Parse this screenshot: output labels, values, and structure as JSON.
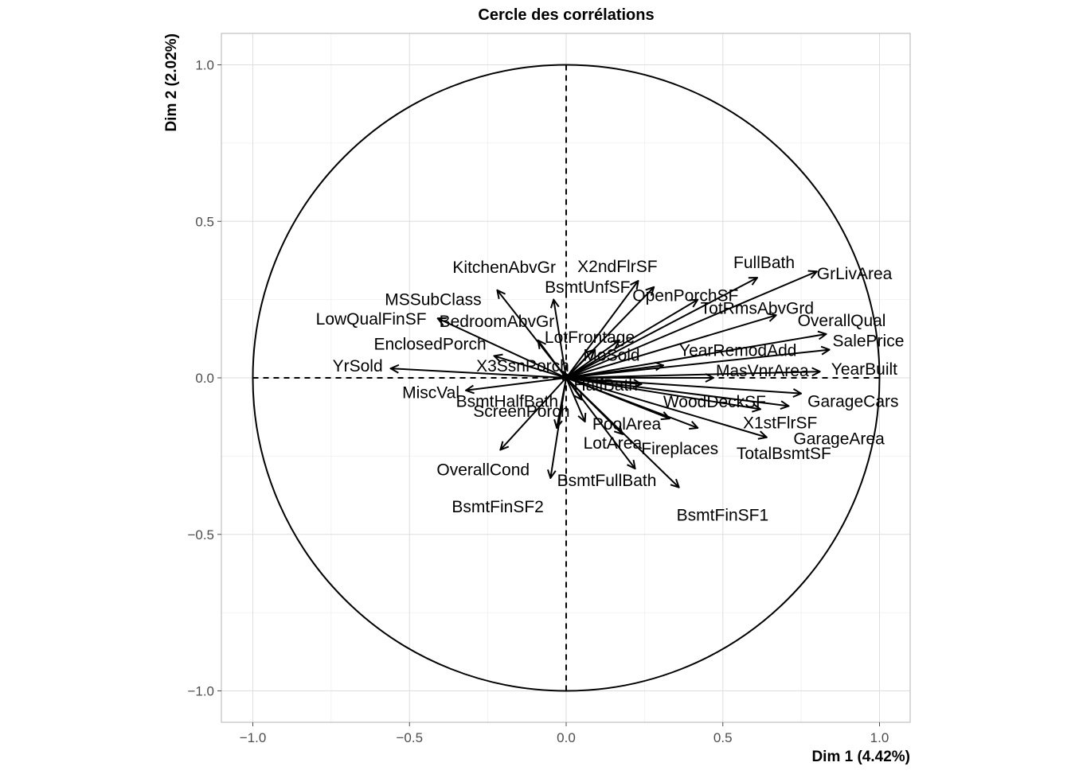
{
  "chart_data": {
    "type": "scatter",
    "subtype": "correlation-circle",
    "title": "Cercle des corrélations",
    "xlabel": "Dim 1 (4.42%)",
    "ylabel": "Dim 2 (2.02%)",
    "xlim": [
      -1.1,
      1.1
    ],
    "ylim": [
      -1.1,
      1.1
    ],
    "xticks": [
      -1.0,
      -0.5,
      0.0,
      0.5,
      1.0
    ],
    "yticks": [
      -1.0,
      -0.5,
      0.0,
      0.5,
      1.0
    ],
    "xtick_labels": [
      "−1.0",
      "−0.5",
      "0.0",
      "0.5",
      "1.0"
    ],
    "ytick_labels": [
      "−1.0",
      "−0.5",
      "0.0",
      "0.5",
      "1.0"
    ],
    "grid": true,
    "unit_circle": true,
    "variables": [
      {
        "name": "GrLivArea",
        "x": 0.8,
        "y": 0.34
      },
      {
        "name": "FullBath",
        "x": 0.61,
        "y": 0.32
      },
      {
        "name": "TotRmsAbvGrd",
        "x": 0.67,
        "y": 0.2
      },
      {
        "name": "OverallQual",
        "x": 0.83,
        "y": 0.14
      },
      {
        "name": "SalePrice",
        "x": 0.84,
        "y": 0.09
      },
      {
        "name": "YearBuilt",
        "x": 0.81,
        "y": 0.02
      },
      {
        "name": "MasVnrArea",
        "x": 0.47,
        "y": 0.0
      },
      {
        "name": "GarageCars",
        "x": 0.75,
        "y": -0.05
      },
      {
        "name": "GarageArea",
        "x": 0.71,
        "y": -0.09
      },
      {
        "name": "X1stFlrSF",
        "x": 0.62,
        "y": -0.1
      },
      {
        "name": "TotalBsmtSF",
        "x": 0.64,
        "y": -0.19
      },
      {
        "name": "WoodDeckSF",
        "x": 0.33,
        "y": -0.13
      },
      {
        "name": "Fireplaces",
        "x": 0.42,
        "y": -0.16
      },
      {
        "name": "BsmtFinSF1",
        "x": 0.36,
        "y": -0.35
      },
      {
        "name": "BsmtFullBath",
        "x": 0.22,
        "y": -0.29
      },
      {
        "name": "PoolArea",
        "x": 0.18,
        "y": -0.18
      },
      {
        "name": "LotArea",
        "x": 0.06,
        "y": -0.14
      },
      {
        "name": "HalfBath",
        "x": 0.24,
        "y": -0.02
      },
      {
        "name": "YearRemodAdd",
        "x": 0.31,
        "y": 0.04
      },
      {
        "name": "OpenPorchSF",
        "x": 0.42,
        "y": 0.25
      },
      {
        "name": "X2ndFlrSF",
        "x": 0.28,
        "y": 0.29
      },
      {
        "name": "BsmtUnfSF",
        "x": 0.23,
        "y": 0.31
      },
      {
        "name": "LotFrontage",
        "x": 0.17,
        "y": 0.12
      },
      {
        "name": "MoSold",
        "x": 0.09,
        "y": 0.09
      },
      {
        "name": "KitchenAbvGr",
        "x": -0.22,
        "y": 0.28
      },
      {
        "name": "MSSubClass",
        "x": -0.04,
        "y": 0.25
      },
      {
        "name": "BedroomAbvGr",
        "x": -0.09,
        "y": 0.12
      },
      {
        "name": "LowQualFinSF",
        "x": -0.41,
        "y": 0.19
      },
      {
        "name": "EnclosedPorch",
        "x": -0.23,
        "y": 0.07
      },
      {
        "name": "X3SsnPorch",
        "x": -0.01,
        "y": 0.02
      },
      {
        "name": "YrSold",
        "x": -0.56,
        "y": 0.03
      },
      {
        "name": "MiscVal",
        "x": -0.32,
        "y": -0.04
      },
      {
        "name": "ScreenPorch",
        "x": -0.03,
        "y": -0.16
      },
      {
        "name": "BsmtHalfBath",
        "x": 0.05,
        "y": -0.07
      },
      {
        "name": "OverallCond",
        "x": -0.21,
        "y": -0.23
      },
      {
        "name": "BsmtFinSF2",
        "x": -0.05,
        "y": -0.32
      }
    ]
  }
}
